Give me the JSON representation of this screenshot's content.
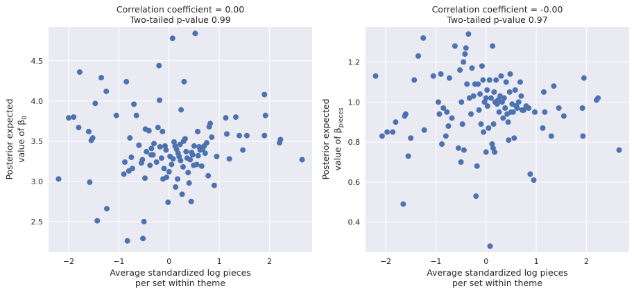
{
  "chart_data": [
    {
      "type": "scatter",
      "title_line1": "Correlation coefficient = 0.00",
      "title_line2": "Two-tailed p-value 0.99",
      "xlabel_line1": "Average standardized log pieces",
      "xlabel_line2": "per set within theme",
      "ylabel_line1": "Posterior expected",
      "ylabel_line2": "value of β",
      "ylabel_subscript": "0",
      "xlim": [
        -2.4,
        2.85
      ],
      "ylim": [
        2.12,
        4.92
      ],
      "xticks": [
        -2,
        -1,
        0,
        1,
        2
      ],
      "yticks": [
        2.5,
        3.0,
        3.5,
        4.0,
        4.5
      ],
      "xtick_labels": [
        "−2",
        "−1",
        "0",
        "1",
        "2"
      ],
      "ytick_labels": [
        "2.5",
        "3.0",
        "3.5",
        "4.0",
        "4.5"
      ],
      "grid": true,
      "marker_color": "#4c72b0",
      "points": [
        [
          -2.2,
          3.03
        ],
        [
          -2.0,
          3.79
        ],
        [
          -1.9,
          3.8
        ],
        [
          -1.8,
          3.67
        ],
        [
          -1.78,
          4.36
        ],
        [
          -1.6,
          3.62
        ],
        [
          -1.58,
          2.99
        ],
        [
          -1.55,
          3.51
        ],
        [
          -1.52,
          3.54
        ],
        [
          -1.47,
          3.97
        ],
        [
          -1.43,
          2.51
        ],
        [
          -1.35,
          4.29
        ],
        [
          -1.25,
          4.12
        ],
        [
          -1.24,
          2.66
        ],
        [
          -1.05,
          3.82
        ],
        [
          -0.9,
          3.09
        ],
        [
          -0.88,
          3.24
        ],
        [
          -0.85,
          4.24
        ],
        [
          -0.83,
          2.26
        ],
        [
          -0.8,
          3.13
        ],
        [
          -0.78,
          3.54
        ],
        [
          -0.75,
          3.3
        ],
        [
          -0.73,
          3.16
        ],
        [
          -0.7,
          3.96
        ],
        [
          -0.65,
          3.82
        ],
        [
          -0.6,
          3.45
        ],
        [
          -0.55,
          3.23
        ],
        [
          -0.53,
          3.27
        ],
        [
          -0.52,
          2.29
        ],
        [
          -0.5,
          2.5
        ],
        [
          -0.48,
          3.04
        ],
        [
          -0.47,
          3.65
        ],
        [
          -0.45,
          3.37
        ],
        [
          -0.4,
          3.63
        ],
        [
          -0.38,
          3.2
        ],
        [
          -0.36,
          3.33
        ],
        [
          -0.35,
          3.41
        ],
        [
          -0.32,
          3.33
        ],
        [
          -0.3,
          3.47
        ],
        [
          -0.25,
          3.24
        ],
        [
          -0.22,
          3.67
        ],
        [
          -0.2,
          4.44
        ],
        [
          -0.19,
          4.01
        ],
        [
          -0.18,
          3.43
        ],
        [
          -0.15,
          3.29
        ],
        [
          -0.13,
          3.62
        ],
        [
          -0.12,
          3.03
        ],
        [
          -0.1,
          3.16
        ],
        [
          -0.08,
          3.44
        ],
        [
          -0.06,
          3.39
        ],
        [
          -0.05,
          3.05
        ],
        [
          -0.02,
          2.74
        ],
        [
          0.0,
          3.12
        ],
        [
          0.02,
          3.31
        ],
        [
          0.05,
          3.21
        ],
        [
          0.07,
          4.78
        ],
        [
          0.08,
          3.28
        ],
        [
          0.1,
          3.49
        ],
        [
          0.12,
          3.44
        ],
        [
          0.13,
          2.93
        ],
        [
          0.15,
          3.4
        ],
        [
          0.17,
          3.03
        ],
        [
          0.18,
          3.35
        ],
        [
          0.2,
          3.31
        ],
        [
          0.22,
          3.46
        ],
        [
          0.23,
          3.26
        ],
        [
          0.24,
          3.89
        ],
        [
          0.26,
          2.84
        ],
        [
          0.28,
          3.18
        ],
        [
          0.29,
          3.5
        ],
        [
          0.3,
          4.24
        ],
        [
          0.32,
          3.53
        ],
        [
          0.34,
          3.37
        ],
        [
          0.36,
          3.29
        ],
        [
          0.38,
          3.11
        ],
        [
          0.4,
          2.98
        ],
        [
          0.42,
          3.27
        ],
        [
          0.44,
          2.75
        ],
        [
          0.45,
          3.36
        ],
        [
          0.47,
          3.33
        ],
        [
          0.49,
          3.2
        ],
        [
          0.5,
          3.44
        ],
        [
          0.52,
          4.84
        ],
        [
          0.55,
          3.21
        ],
        [
          0.57,
          3.62
        ],
        [
          0.58,
          3.32
        ],
        [
          0.6,
          3.43
        ],
        [
          0.62,
          3.39
        ],
        [
          0.65,
          3.19
        ],
        [
          0.67,
          3.4
        ],
        [
          0.7,
          3.44
        ],
        [
          0.72,
          3.35
        ],
        [
          0.75,
          3.48
        ],
        [
          0.78,
          3.07
        ],
        [
          0.8,
          3.68
        ],
        [
          0.82,
          3.72
        ],
        [
          0.85,
          3.55
        ],
        [
          0.9,
          2.95
        ],
        [
          0.95,
          3.31
        ],
        [
          1.13,
          3.79
        ],
        [
          1.15,
          3.59
        ],
        [
          1.2,
          3.28
        ],
        [
          1.33,
          3.8
        ],
        [
          1.4,
          3.57
        ],
        [
          1.47,
          3.39
        ],
        [
          1.55,
          3.57
        ],
        [
          1.9,
          4.08
        ],
        [
          1.9,
          3.57
        ],
        [
          1.92,
          3.82
        ],
        [
          2.2,
          3.48
        ],
        [
          2.22,
          3.52
        ],
        [
          2.65,
          3.27
        ]
      ]
    },
    {
      "type": "scatter",
      "title_line1": "Correlation coefficient = -0.00",
      "title_line2": "Two-tailed p-value 0.97",
      "xlabel_line1": "Average standardized log pieces",
      "xlabel_line2": "per set within theme",
      "ylabel_line1": "Posterior expected",
      "ylabel_line2": "value of β",
      "ylabel_subscript": "pieces",
      "xlim": [
        -2.4,
        2.85
      ],
      "ylim": [
        0.25,
        1.375
      ],
      "xticks": [
        -2,
        -1,
        0,
        1,
        2
      ],
      "yticks": [
        0.4,
        0.6,
        0.8,
        1.0,
        1.2
      ],
      "xtick_labels": [
        "−2",
        "−1",
        "0",
        "1",
        "2"
      ],
      "ytick_labels": [
        "0.4",
        "0.6",
        "0.8",
        "1.0",
        "1.2"
      ],
      "grid": true,
      "marker_color": "#4c72b0",
      "points": [
        [
          -2.2,
          1.13
        ],
        [
          -2.07,
          0.83
        ],
        [
          -1.97,
          0.85
        ],
        [
          -1.86,
          0.85
        ],
        [
          -1.8,
          0.9
        ],
        [
          -1.65,
          0.49
        ],
        [
          -1.62,
          0.93
        ],
        [
          -1.6,
          0.94
        ],
        [
          -1.55,
          0.73
        ],
        [
          -1.5,
          0.82
        ],
        [
          -1.43,
          1.11
        ],
        [
          -1.35,
          1.23
        ],
        [
          -1.25,
          1.32
        ],
        [
          -1.23,
          0.86
        ],
        [
          -1.05,
          1.13
        ],
        [
          -0.95,
          1.0
        ],
        [
          -0.93,
          0.94
        ],
        [
          -0.9,
          1.14
        ],
        [
          -0.88,
          0.79
        ],
        [
          -0.85,
          0.97
        ],
        [
          -0.8,
          0.83
        ],
        [
          -0.78,
          0.95
        ],
        [
          -0.75,
          0.88
        ],
        [
          -0.73,
          1.12
        ],
        [
          -0.68,
          0.92
        ],
        [
          -0.62,
          1.28
        ],
        [
          -0.55,
          0.77
        ],
        [
          -0.52,
          1.16
        ],
        [
          -0.5,
          0.7
        ],
        [
          -0.49,
          1.0
        ],
        [
          -0.47,
          0.89
        ],
        [
          -0.45,
          1.2
        ],
        [
          -0.44,
          0.76
        ],
        [
          -0.42,
          1.24
        ],
        [
          -0.4,
          1.27
        ],
        [
          -0.38,
          1.09
        ],
        [
          -0.35,
          1.34
        ],
        [
          -0.33,
          1.02
        ],
        [
          -0.3,
          0.94
        ],
        [
          -0.28,
          1.17
        ],
        [
          -0.25,
          1.03
        ],
        [
          -0.22,
          1.09
        ],
        [
          -0.2,
          0.53
        ],
        [
          -0.18,
          0.68
        ],
        [
          -0.16,
          1.09
        ],
        [
          -0.14,
          0.96
        ],
        [
          -0.12,
          1.04
        ],
        [
          -0.1,
          0.89
        ],
        [
          -0.08,
          1.18
        ],
        [
          -0.06,
          1.11
        ],
        [
          -0.05,
          0.85
        ],
        [
          -0.03,
          1.0
        ],
        [
          0.0,
          0.75
        ],
        [
          0.0,
          1.02
        ],
        [
          0.02,
          1.06
        ],
        [
          0.03,
          0.98
        ],
        [
          0.05,
          0.87
        ],
        [
          0.07,
          1.11
        ],
        [
          0.08,
          0.28
        ],
        [
          0.1,
          1.02
        ],
        [
          0.12,
          0.79
        ],
        [
          0.13,
          1.28
        ],
        [
          0.14,
          0.77
        ],
        [
          0.15,
          0.89
        ],
        [
          0.16,
          1.05
        ],
        [
          0.17,
          0.75
        ],
        [
          0.18,
          1.0
        ],
        [
          0.2,
          1.11
        ],
        [
          0.22,
          0.99
        ],
        [
          0.24,
          1.01
        ],
        [
          0.26,
          0.95
        ],
        [
          0.28,
          1.03
        ],
        [
          0.3,
          1.13
        ],
        [
          0.32,
          1.0
        ],
        [
          0.34,
          0.92
        ],
        [
          0.36,
          1.02
        ],
        [
          0.38,
          0.97
        ],
        [
          0.4,
          1.1
        ],
        [
          0.42,
          0.94
        ],
        [
          0.44,
          0.9
        ],
        [
          0.45,
          0.81
        ],
        [
          0.47,
          1.05
        ],
        [
          0.48,
          1.14
        ],
        [
          0.5,
          0.95
        ],
        [
          0.52,
          0.99
        ],
        [
          0.54,
          0.95
        ],
        [
          0.56,
          0.82
        ],
        [
          0.58,
          1.06
        ],
        [
          0.6,
          0.98
        ],
        [
          0.62,
          0.97
        ],
        [
          0.65,
          1.0
        ],
        [
          0.68,
          1.1
        ],
        [
          0.7,
          1.03
        ],
        [
          0.72,
          0.96
        ],
        [
          0.75,
          0.96
        ],
        [
          0.8,
          0.98
        ],
        [
          0.85,
          0.97
        ],
        [
          0.88,
          0.64
        ],
        [
          0.95,
          0.61
        ],
        [
          0.97,
          0.95
        ],
        [
          1.13,
          0.87
        ],
        [
          1.15,
          1.05
        ],
        [
          1.17,
          0.95
        ],
        [
          1.3,
          0.83
        ],
        [
          1.35,
          1.08
        ],
        [
          1.45,
          0.97
        ],
        [
          1.55,
          0.93
        ],
        [
          1.92,
          0.97
        ],
        [
          1.93,
          0.83
        ],
        [
          1.95,
          1.12
        ],
        [
          2.2,
          1.01
        ],
        [
          2.23,
          1.02
        ],
        [
          2.65,
          0.76
        ]
      ]
    }
  ]
}
